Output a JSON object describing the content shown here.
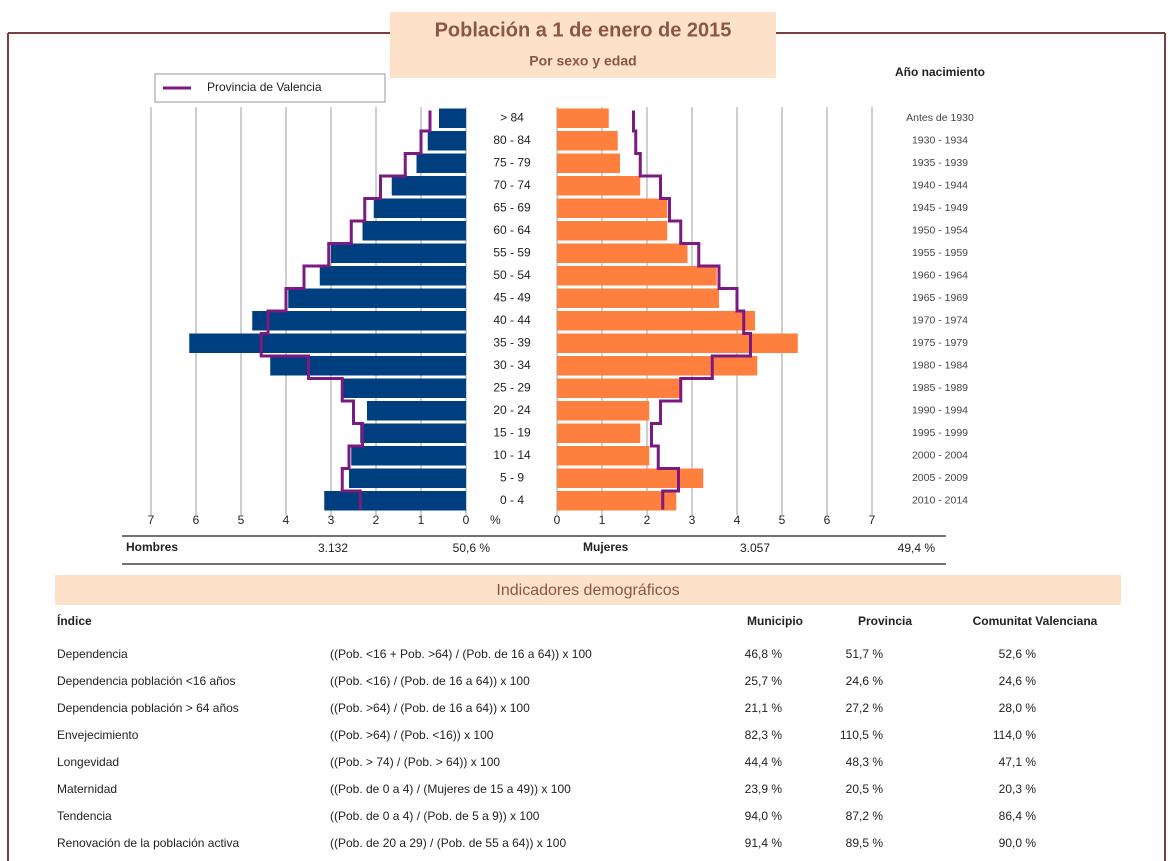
{
  "chart_data": {
    "type": "pyramid",
    "title": "Población a 1 de enero de 2015",
    "subtitle": "Por sexo y edad",
    "right_axis_title": "Año nacimiento",
    "x_label": "%",
    "categories": [
      "> 84",
      "80 - 84",
      "75 - 79",
      "70 - 74",
      "65 - 69",
      "60 - 64",
      "55 - 59",
      "50 - 54",
      "45 - 49",
      "40 - 44",
      "35 - 39",
      "30 - 34",
      "25 - 29",
      "20 - 24",
      "15 - 19",
      "10 - 14",
      "5 - 9",
      "0 - 4"
    ],
    "birth_years": [
      "Antes de 1930",
      "1930 - 1934",
      "1935 - 1939",
      "1940 - 1944",
      "1945 - 1949",
      "1950 - 1954",
      "1955 - 1959",
      "1960 - 1964",
      "1965 - 1969",
      "1970 - 1974",
      "1975 - 1979",
      "1980 - 1984",
      "1985 - 1989",
      "1990 - 1994",
      "1995 - 1999",
      "2000 - 2004",
      "2005 - 2009",
      "2010 - 2014"
    ],
    "series": [
      {
        "name": "Hombres",
        "side": "left",
        "color": "#003f7f",
        "values": [
          0.6,
          0.85,
          1.1,
          1.65,
          2.05,
          2.3,
          3.0,
          3.25,
          3.95,
          4.75,
          6.15,
          4.35,
          2.75,
          2.2,
          2.35,
          2.55,
          2.6,
          3.15
        ],
        "total": "3.132",
        "share": "50,6 %"
      },
      {
        "name": "Mujeres",
        "side": "right",
        "color": "#ff7f3f",
        "values": [
          1.15,
          1.35,
          1.4,
          1.85,
          2.45,
          2.45,
          2.9,
          3.55,
          3.6,
          4.4,
          5.35,
          4.45,
          2.75,
          2.05,
          1.85,
          2.05,
          3.25,
          2.65
        ],
        "total": "3.057",
        "share": "49,4 %"
      }
    ],
    "reference": {
      "name": "Provincia de Valencia",
      "color": "#7b1a80",
      "left": [
        0.8,
        1.0,
        1.35,
        1.9,
        2.25,
        2.55,
        3.05,
        3.6,
        4.0,
        4.4,
        4.55,
        3.5,
        2.75,
        2.5,
        2.3,
        2.6,
        2.75,
        2.35
      ],
      "right": [
        1.7,
        1.75,
        1.85,
        2.3,
        2.5,
        2.75,
        3.15,
        3.6,
        4.0,
        4.15,
        4.3,
        3.45,
        2.75,
        2.3,
        2.1,
        2.25,
        2.7,
        2.35
      ]
    },
    "xlim": [
      0,
      7
    ],
    "xticks": [
      0,
      1,
      2,
      3,
      4,
      5,
      6,
      7
    ],
    "grid": true
  },
  "indicators": {
    "title": "Indicadores demográficos",
    "index_header": "Índice",
    "columns": [
      "Municipio",
      "Provincia",
      "Comunitat Valenciana"
    ],
    "rows": [
      {
        "name": "Dependencia",
        "formula": "((Pob. <16 + Pob. >64) / (Pob. de 16 a 64)) x 100",
        "values": [
          "46,8 %",
          "51,7 %",
          "52,6 %"
        ]
      },
      {
        "name": "Dependencia población <16 años",
        "formula": "((Pob. <16) / (Pob. de 16 a 64)) x 100",
        "values": [
          "25,7 %",
          "24,6 %",
          "24,6 %"
        ]
      },
      {
        "name": "Dependencia población > 64 años",
        "formula": "((Pob. >64) / (Pob. de 16 a 64)) x 100",
        "values": [
          "21,1 %",
          "27,2 %",
          "28,0 %"
        ]
      },
      {
        "name": "Envejecimiento",
        "formula": "((Pob. >64) / (Pob. <16)) x 100",
        "values": [
          "82,3 %",
          "110,5 %",
          "114,0 %"
        ]
      },
      {
        "name": "Longevidad",
        "formula": "((Pob. > 74) / (Pob. > 64)) x 100",
        "values": [
          "44,4 %",
          "48,3 %",
          "47,1 %"
        ]
      },
      {
        "name": "Maternidad",
        "formula": "((Pob. de 0 a 4) / (Mujeres de 15 a 49)) x 100",
        "values": [
          "23,9 %",
          "20,5 %",
          "20,3 %"
        ]
      },
      {
        "name": "Tendencia",
        "formula": "((Pob. de 0 a 4) / (Pob. de 5 a 9)) x 100",
        "values": [
          "94,0 %",
          "87,2 %",
          "86,4 %"
        ]
      },
      {
        "name": "Renovación de la población activa",
        "formula": "((Pob. de 20 a 29) / (Pob. de 55 a 64)) x 100",
        "values": [
          "91,4 %",
          "89,5 %",
          "90,0 %"
        ]
      }
    ]
  }
}
